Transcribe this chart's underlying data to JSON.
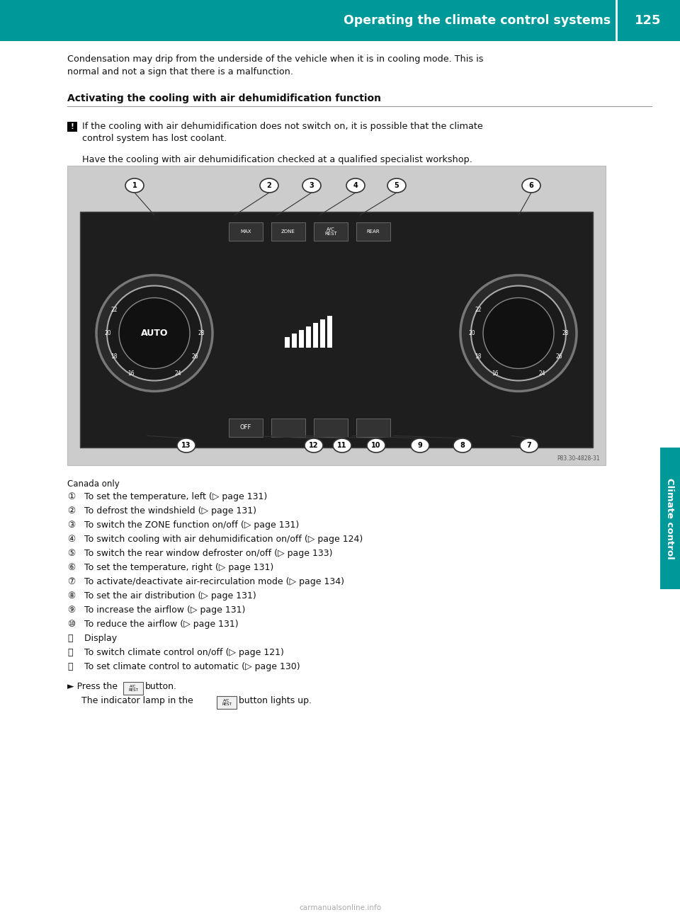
{
  "page_width": 9.6,
  "page_height": 13.02,
  "bg_color": "#ffffff",
  "header_color": "#009999",
  "header_text": "Operating the climate control systems",
  "header_page_num": "125",
  "header_text_color": "#ffffff",
  "sidebar_color": "#009999",
  "sidebar_text": "Climate control",
  "body_text_color": "#000000",
  "para1_line1": "Condensation may drip from the underside of the vehicle when it is in cooling mode. This is",
  "para1_line2": "normal and not a sign that there is a malfunction.",
  "section_title": "Activating the cooling with air dehumidification function",
  "warn_line1": "If the cooling with air dehumidification does not switch on, it is possible that the climate",
  "warn_line2": "control system has lost coolant.",
  "warn_line3": "Have the cooling with air dehumidification checked at a qualified specialist workshop.",
  "image_bg": "#cccccc",
  "panel_bg": "#1e1e1e",
  "panel_edge": "#555555",
  "dial_outer": "#2a2a2a",
  "dial_inner": "#111111",
  "canada_only": "Canada only",
  "items": [
    [
      "①",
      " To set the temperature, left (▷ page 131)"
    ],
    [
      "②",
      " To defrost the windshield (▷ page 131)"
    ],
    [
      "③",
      " To switch the ZONE function on/off (▷ page 131)"
    ],
    [
      "④",
      " To switch cooling with air dehumidification on/off (▷ page 124)"
    ],
    [
      "⑤",
      " To switch the rear window defroster on/off (▷ page 133)"
    ],
    [
      "⑥",
      " To set the temperature, right (▷ page 131)"
    ],
    [
      "⑦",
      " To activate/deactivate air-recirculation mode (▷ page 134)"
    ],
    [
      "⑧",
      " To set the air distribution (▷ page 131)"
    ],
    [
      "⑨",
      " To increase the airflow (▷ page 131)"
    ],
    [
      "⑩",
      " To reduce the airflow (▷ page 131)"
    ],
    [
      "⑪",
      " Display"
    ],
    [
      "⑫",
      " To switch climate control on/off (▷ page 121)"
    ],
    [
      "⑬",
      " To set climate control to automatic (▷ page 130)"
    ]
  ],
  "footer_url": "carmanualsonline.info",
  "ref_num": "P83.30-4828-31"
}
